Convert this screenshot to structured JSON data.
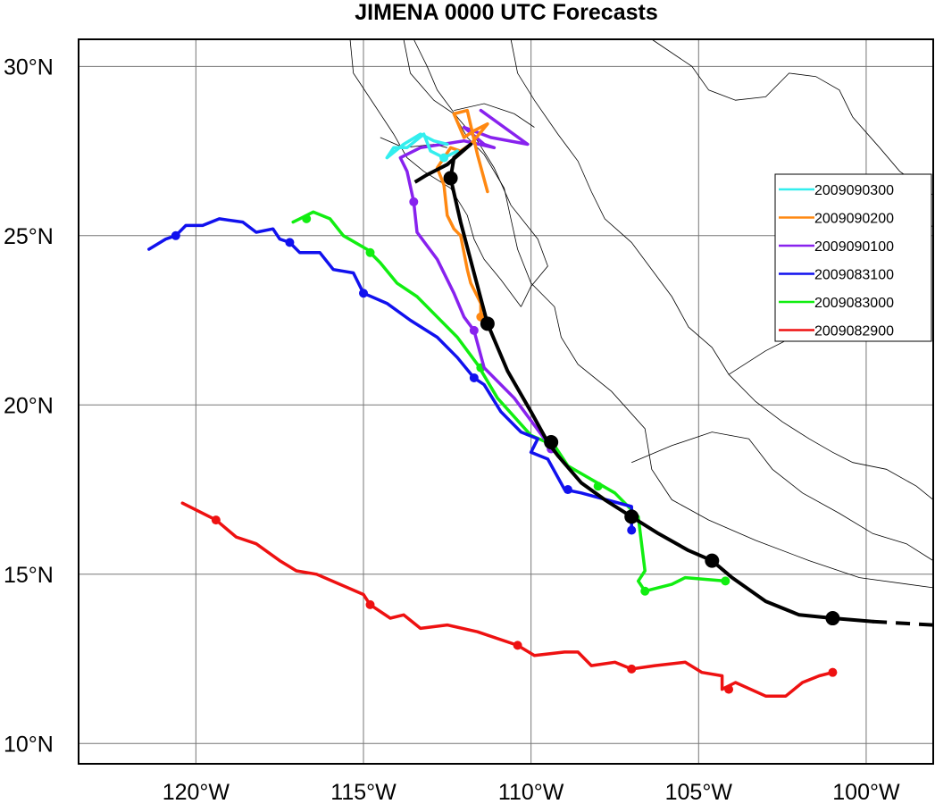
{
  "title": "JIMENA 0000 UTC Forecasts",
  "x_tick_labels": [
    "120°W",
    "115°W",
    "110°W",
    "105°W",
    "100°W"
  ],
  "y_tick_labels": [
    "30°N",
    "25°N",
    "20°N",
    "15°N",
    "10°N"
  ],
  "legend": [
    {
      "label": "2009090300",
      "color": "#33eeee"
    },
    {
      "label": "2009090200",
      "color": "#ff8811"
    },
    {
      "label": "2009090100",
      "color": "#8822ee"
    },
    {
      "label": "2009083100",
      "color": "#1111ee"
    },
    {
      "label": "2009083000",
      "color": "#11ee11"
    },
    {
      "label": "2009082900",
      "color": "#ee1111"
    }
  ],
  "chart_data": {
    "type": "map-tracks",
    "title": "JIMENA 0000 UTC Forecasts",
    "xlim": [
      -123.5,
      -98
    ],
    "ylim": [
      9.4,
      30.8
    ],
    "x_ticks": [
      -120,
      -115,
      -110,
      -105,
      -100
    ],
    "y_ticks": [
      10,
      15,
      20,
      25,
      30
    ],
    "grid": true,
    "legend_position": "right",
    "best_track": {
      "color": "#000000",
      "points": [
        [
          -98,
          13.5
        ],
        [
          -99.8,
          13.6
        ],
        [
          -101,
          13.7
        ],
        [
          -102,
          13.8
        ],
        [
          -103,
          14.2
        ],
        [
          -104,
          14.9
        ],
        [
          -104.6,
          15.4
        ],
        [
          -105.3,
          15.7
        ],
        [
          -106.2,
          16.2
        ],
        [
          -107,
          16.7
        ],
        [
          -107.8,
          17.2
        ],
        [
          -108.5,
          17.7
        ],
        [
          -109.2,
          18.5
        ],
        [
          -109.5,
          18.9
        ],
        [
          -110,
          19.8
        ],
        [
          -110.7,
          21
        ],
        [
          -111.3,
          22.4
        ],
        [
          -111.7,
          23.9
        ],
        [
          -112.1,
          25.4
        ],
        [
          -112.4,
          26.7
        ],
        [
          -112.3,
          27.3
        ],
        [
          -111.8,
          27.7
        ],
        [
          -112.5,
          27.1
        ],
        [
          -113.1,
          26.8
        ],
        [
          -113.6,
          26.5
        ]
      ],
      "dashed_start_segment": [
        [
          -98,
          13.5
        ],
        [
          -99.8,
          13.6
        ]
      ],
      "dashed_end_segment": [
        [
          -113.1,
          26.8
        ],
        [
          -113.6,
          26.5
        ]
      ],
      "markers": [
        [
          -101,
          13.7
        ],
        [
          -104.6,
          15.4
        ],
        [
          -107,
          16.7
        ],
        [
          -109.4,
          18.9
        ],
        [
          -111.3,
          22.4
        ],
        [
          -112.4,
          26.7
        ]
      ]
    },
    "series": [
      {
        "name": "2009090300",
        "color": "#33eeee",
        "points": [
          [
            -112.2,
            27.5
          ],
          [
            -112.6,
            27.3
          ],
          [
            -113,
            27.5
          ],
          [
            -113.2,
            28.0
          ],
          [
            -113.7,
            27.6
          ],
          [
            -114.1,
            27.6
          ],
          [
            -114.3,
            27.3
          ],
          [
            -113.8,
            27.7
          ],
          [
            -113.3,
            28.0
          ],
          [
            -112.9,
            27.8
          ],
          [
            -112.5,
            27.7
          ]
        ],
        "markers": [
          [
            -112.6,
            27.3
          ]
        ]
      },
      {
        "name": "2009090200",
        "color": "#ff8811",
        "points": [
          [
            -111.3,
            26.3
          ],
          [
            -111.6,
            27.4
          ],
          [
            -111.9,
            28.7
          ],
          [
            -112.3,
            28.6
          ],
          [
            -112.0,
            27.9
          ],
          [
            -111.7,
            28.1
          ],
          [
            -111.3,
            28.3
          ],
          [
            -111.8,
            27.7
          ],
          [
            -112.1,
            27.5
          ],
          [
            -112.4,
            27.6
          ],
          [
            -112.8,
            27.0
          ],
          [
            -112.6,
            26.5
          ],
          [
            -112.5,
            25.6
          ],
          [
            -112.3,
            25.2
          ],
          [
            -112.1,
            25.0
          ],
          [
            -111.9,
            24.0
          ],
          [
            -111.8,
            23.6
          ],
          [
            -111.5,
            23.0
          ],
          [
            -111.5,
            22.6
          ]
        ],
        "markers": [
          [
            -111.5,
            22.6
          ]
        ]
      },
      {
        "name": "2009090100",
        "color": "#8822ee",
        "points": [
          [
            -111.5,
            28.7
          ],
          [
            -110.1,
            27.7
          ],
          [
            -111.2,
            27.9
          ],
          [
            -112.0,
            28.2
          ],
          [
            -111.4,
            27.7
          ],
          [
            -111.1,
            27.6
          ],
          [
            -112.0,
            27.8
          ],
          [
            -113.3,
            27.6
          ],
          [
            -113.9,
            27.3
          ],
          [
            -113.7,
            26.9
          ],
          [
            -113.5,
            26.0
          ],
          [
            -113.4,
            25.1
          ],
          [
            -112.8,
            24.3
          ],
          [
            -112.3,
            23.3
          ],
          [
            -112.0,
            22.6
          ],
          [
            -111.7,
            22.2
          ],
          [
            -111.4,
            21.1
          ],
          [
            -110.5,
            20.2
          ],
          [
            -109.6,
            19.0
          ],
          [
            -109.4,
            18.7
          ]
        ],
        "markers": [
          [
            -113.5,
            26.0
          ],
          [
            -111.7,
            22.2
          ],
          [
            -109.4,
            18.7
          ]
        ]
      },
      {
        "name": "2009083100",
        "color": "#1111ee",
        "points": [
          [
            -121.4,
            24.6
          ],
          [
            -120.9,
            24.9
          ],
          [
            -120.6,
            25.0
          ],
          [
            -120.3,
            25.3
          ],
          [
            -119.8,
            25.3
          ],
          [
            -119.3,
            25.5
          ],
          [
            -118.6,
            25.4
          ],
          [
            -118.2,
            25.1
          ],
          [
            -117.7,
            25.2
          ],
          [
            -117.5,
            24.9
          ],
          [
            -117.2,
            24.8
          ],
          [
            -116.9,
            24.5
          ],
          [
            -116.3,
            24.5
          ],
          [
            -115.9,
            24.0
          ],
          [
            -115.3,
            23.9
          ],
          [
            -115.0,
            23.3
          ],
          [
            -114.3,
            23.0
          ],
          [
            -113.6,
            22.5
          ],
          [
            -112.8,
            22.0
          ],
          [
            -112.2,
            21.4
          ],
          [
            -111.7,
            20.8
          ],
          [
            -111.4,
            20.6
          ],
          [
            -110.9,
            19.8
          ],
          [
            -110.3,
            19.2
          ],
          [
            -109.8,
            19.0
          ],
          [
            -110.0,
            18.6
          ],
          [
            -109.5,
            18.4
          ],
          [
            -109.0,
            17.5
          ],
          [
            -108.5,
            17.4
          ],
          [
            -107.0,
            17.0
          ],
          [
            -107.0,
            16.3
          ]
        ],
        "markers": [
          [
            -120.6,
            25.0
          ],
          [
            -117.2,
            24.8
          ],
          [
            -115.0,
            23.3
          ],
          [
            -111.7,
            20.8
          ],
          [
            -108.9,
            17.5
          ],
          [
            -107.0,
            16.3
          ]
        ]
      },
      {
        "name": "2009083000",
        "color": "#11ee11",
        "points": [
          [
            -117.1,
            25.4
          ],
          [
            -116.9,
            25.5
          ],
          [
            -116.5,
            25.7
          ],
          [
            -116.0,
            25.5
          ],
          [
            -115.6,
            25.0
          ],
          [
            -114.9,
            24.6
          ],
          [
            -114.5,
            24.2
          ],
          [
            -114.0,
            23.6
          ],
          [
            -113.4,
            23.2
          ],
          [
            -112.8,
            22.6
          ],
          [
            -112.2,
            22.0
          ],
          [
            -111.6,
            21.2
          ],
          [
            -111.0,
            20.2
          ],
          [
            -110.0,
            19.1
          ],
          [
            -109.3,
            18.8
          ],
          [
            -108.9,
            18.2
          ],
          [
            -107.5,
            17.4
          ],
          [
            -106.8,
            16.7
          ],
          [
            -106.6,
            15.1
          ],
          [
            -106.8,
            14.8
          ],
          [
            -106.6,
            14.5
          ],
          [
            -105.8,
            14.7
          ],
          [
            -105.4,
            14.9
          ],
          [
            -104.2,
            14.8
          ]
        ],
        "markers": [
          [
            -116.7,
            25.5
          ],
          [
            -114.8,
            24.5
          ],
          [
            -111.5,
            21.1
          ],
          [
            -108.0,
            17.6
          ],
          [
            -106.6,
            14.5
          ],
          [
            -104.2,
            14.8
          ]
        ]
      },
      {
        "name": "2009082900",
        "color": "#ee1111",
        "points": [
          [
            -120.4,
            17.1
          ],
          [
            -119.4,
            16.6
          ],
          [
            -118.8,
            16.1
          ],
          [
            -118.2,
            15.9
          ],
          [
            -117.5,
            15.4
          ],
          [
            -117.0,
            15.1
          ],
          [
            -116.4,
            15.0
          ],
          [
            -115.7,
            14.7
          ],
          [
            -115.0,
            14.4
          ],
          [
            -114.8,
            14.1
          ],
          [
            -114.2,
            13.7
          ],
          [
            -113.8,
            13.8
          ],
          [
            -113.3,
            13.4
          ],
          [
            -112.5,
            13.5
          ],
          [
            -111.6,
            13.3
          ],
          [
            -110.4,
            12.9
          ],
          [
            -109.9,
            12.6
          ],
          [
            -109.0,
            12.7
          ],
          [
            -108.6,
            12.7
          ],
          [
            -108.2,
            12.3
          ],
          [
            -107.5,
            12.4
          ],
          [
            -107.0,
            12.2
          ],
          [
            -106.3,
            12.3
          ],
          [
            -105.4,
            12.4
          ],
          [
            -104.9,
            12.1
          ],
          [
            -104.3,
            12.0
          ],
          [
            -104.3,
            11.6
          ],
          [
            -103.9,
            11.8
          ],
          [
            -103.0,
            11.4
          ],
          [
            -102.4,
            11.4
          ],
          [
            -101.9,
            11.8
          ],
          [
            -101.4,
            12.0
          ],
          [
            -101.0,
            12.1
          ]
        ],
        "markers": [
          [
            -119.4,
            16.6
          ],
          [
            -114.8,
            14.1
          ],
          [
            -110.4,
            12.9
          ],
          [
            -107.0,
            12.2
          ],
          [
            -104.1,
            11.6
          ],
          [
            -101.0,
            12.1
          ]
        ]
      }
    ]
  }
}
